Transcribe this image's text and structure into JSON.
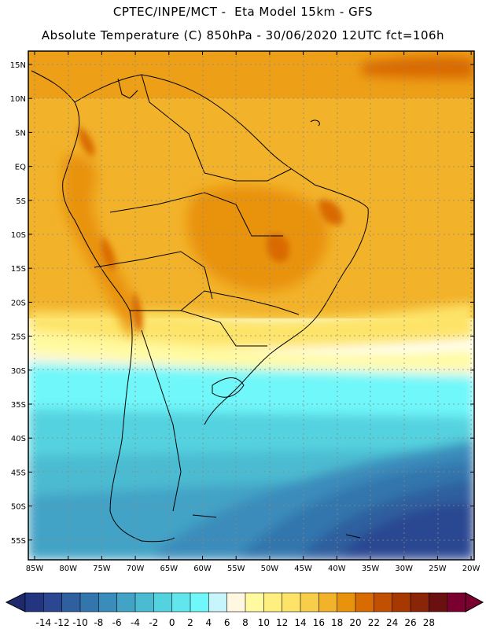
{
  "header": {
    "line1": "CPTEC/INPE/MCT -  Eta Model 15km - GFS",
    "line2": "Absolute Temperature (C) 850hPa - 30/06/2020 12UTC fct=106h"
  },
  "axes": {
    "lat_labels": [
      "15N",
      "10N",
      "5N",
      "EQ",
      "5S",
      "10S",
      "15S",
      "20S",
      "25S",
      "30S",
      "35S",
      "40S",
      "45S",
      "50S",
      "55S"
    ],
    "lon_labels": [
      "85W",
      "80W",
      "75W",
      "70W",
      "65W",
      "60W",
      "55W",
      "50W",
      "45W",
      "40W",
      "35W",
      "30W",
      "25W",
      "20W"
    ]
  },
  "colorbar": {
    "labels": [
      "-14",
      "-12",
      "-10",
      "-8",
      "-6",
      "-4",
      "-2",
      "0",
      "2",
      "4",
      "6",
      "8",
      "10",
      "12",
      "14",
      "16",
      "18",
      "20",
      "22",
      "24",
      "26",
      "28"
    ],
    "colors": [
      "#24357f",
      "#2b4791",
      "#2f5f9e",
      "#3376ad",
      "#3a8cbb",
      "#43a3c6",
      "#4bbbd1",
      "#55d2df",
      "#62e6ee",
      "#6ff7f9",
      "#c8f5fb",
      "#fff7e0",
      "#fffaa0",
      "#ffef80",
      "#fde469",
      "#f7cd49",
      "#f2b22a",
      "#e9930c",
      "#d96b03",
      "#c25002",
      "#a73800",
      "#8a2507",
      "#6a1010",
      "#7a0030"
    ],
    "left_tip": "#1f2a6c",
    "right_tip": "#7a0030"
  }
}
